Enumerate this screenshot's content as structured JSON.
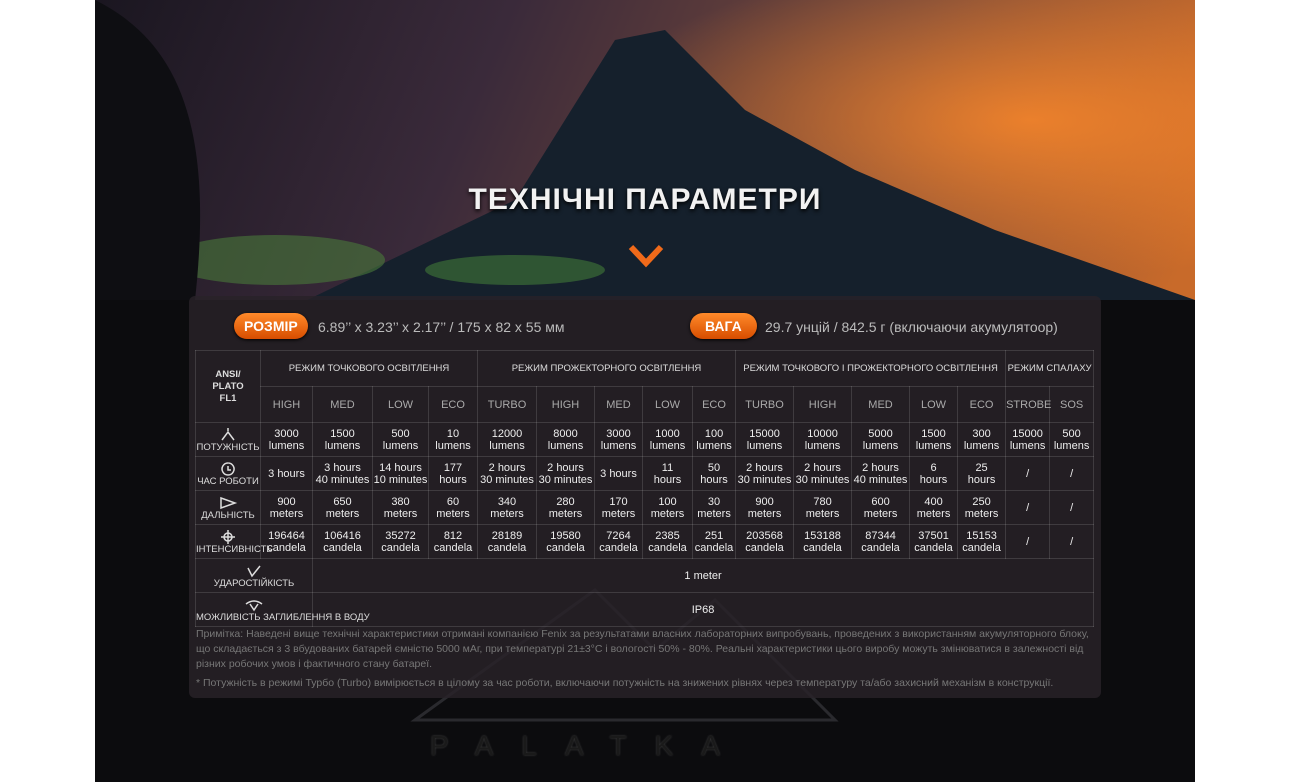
{
  "header": {
    "title": "ТЕХНІЧНІ ПАРАМЕТРИ"
  },
  "size": {
    "badge": "РОЗМІР",
    "text": "6.89’’ x 3.23’’ x 2.17’’ / 175 x 82 x 55 мм"
  },
  "weight": {
    "badge": "ВАГА",
    "text": "29.7 унцій / 842.5 г (включаючи акумулятоор)"
  },
  "table": {
    "corner": "ANSI/\nPLATO\nFL1",
    "groups": [
      {
        "label": "РЕЖИМ ТОЧКОВОГО ОСВІТЛЕННЯ",
        "modes": [
          "HIGH",
          "MED",
          "LOW",
          "ECO"
        ]
      },
      {
        "label": "РЕЖИМ ПРОЖЕКТОРНОГО ОСВІТЛЕННЯ",
        "modes": [
          "TURBO",
          "HIGH",
          "MED",
          "LOW",
          "ECO"
        ]
      },
      {
        "label": "РЕЖИМ ТОЧКОВОГО І ПРОЖЕКТОРНОГО ОСВІТЛЕННЯ",
        "modes": [
          "TURBO",
          "HIGH",
          "MED",
          "LOW",
          "ECO"
        ]
      },
      {
        "label": "РЕЖИМ СПАЛАХУ",
        "modes": [
          "STROBE",
          "SOS"
        ]
      }
    ],
    "rows": [
      {
        "label": "ПОТУЖНІСТЬ",
        "cells": [
          "3000\nlumens",
          "1500\nlumens",
          "500\nlumens",
          "10\nlumens",
          "12000\nlumens",
          "8000\nlumens",
          "3000\nlumens",
          "1000\nlumens",
          "100\nlumens",
          "15000\nlumens",
          "10000\nlumens",
          "5000\nlumens",
          "1500\nlumens",
          "300\nlumens",
          "15000\nlumens",
          "500\nlumens"
        ]
      },
      {
        "label": "ЧАС РОБОТИ",
        "cells": [
          "3 hours",
          "3 hours\n40 minutes",
          "14 hours\n10 minutes",
          "177\nhours",
          "2 hours\n30 minutes",
          "2 hours\n30 minutes",
          "3 hours",
          "11\nhours",
          "50\nhours",
          "2 hours\n30 minutes",
          "2 hours\n30 minutes",
          "2 hours\n40 minutes",
          "6\nhours",
          "25\nhours",
          "/",
          "/"
        ]
      },
      {
        "label": "ДАЛЬНІСТЬ",
        "cells": [
          "900\nmeters",
          "650\nmeters",
          "380\nmeters",
          "60\nmeters",
          "340\nmeters",
          "280\nmeters",
          "170\nmeters",
          "100\nmeters",
          "30\nmeters",
          "900\nmeters",
          "780\nmeters",
          "600\nmeters",
          "400\nmeters",
          "250\nmeters",
          "/",
          "/"
        ]
      },
      {
        "label": "ІНТЕНСИВНІСТЬ",
        "cells": [
          "196464\ncandela",
          "106416\ncandela",
          "35272\ncandela",
          "812\ncandela",
          "28189\ncandela",
          "19580\ncandela",
          "7264\ncandela",
          "2385\ncandela",
          "251\ncandela",
          "203568\ncandela",
          "153188\ncandela",
          "87344\ncandela",
          "37501\ncandela",
          "15153\ncandela",
          "/",
          "/"
        ]
      },
      {
        "label": "УДАРОСТІЙКІСТЬ",
        "value": "1 meter"
      },
      {
        "label": "МОЖЛИВІСТЬ ЗАГЛИБЛЕННЯ В ВОДУ",
        "value": "IP68"
      }
    ]
  },
  "notes": [
    "Примітка: Наведені вище технічні характеристики отримані компанією Fenix за результатами власних лабораторних випробувань, проведених з використанням акумуляторного блоку, що складається з 3 вбудованих батарей ємністю 5000 мАг, при температурі 21±3°C і вологості 50% - 80%. Реальні характеристики цього виробу можуть змінюватися в залежності від різних робочих умов і фактичного стану батареї.",
    "* Потужність в режимі Турбо (Turbo) вимірюється в цілому за час роботи, включаючи потужність на знижених рівнях через температуру та/або захисний механізм в конструкції."
  ],
  "brand": "PALATKA"
}
